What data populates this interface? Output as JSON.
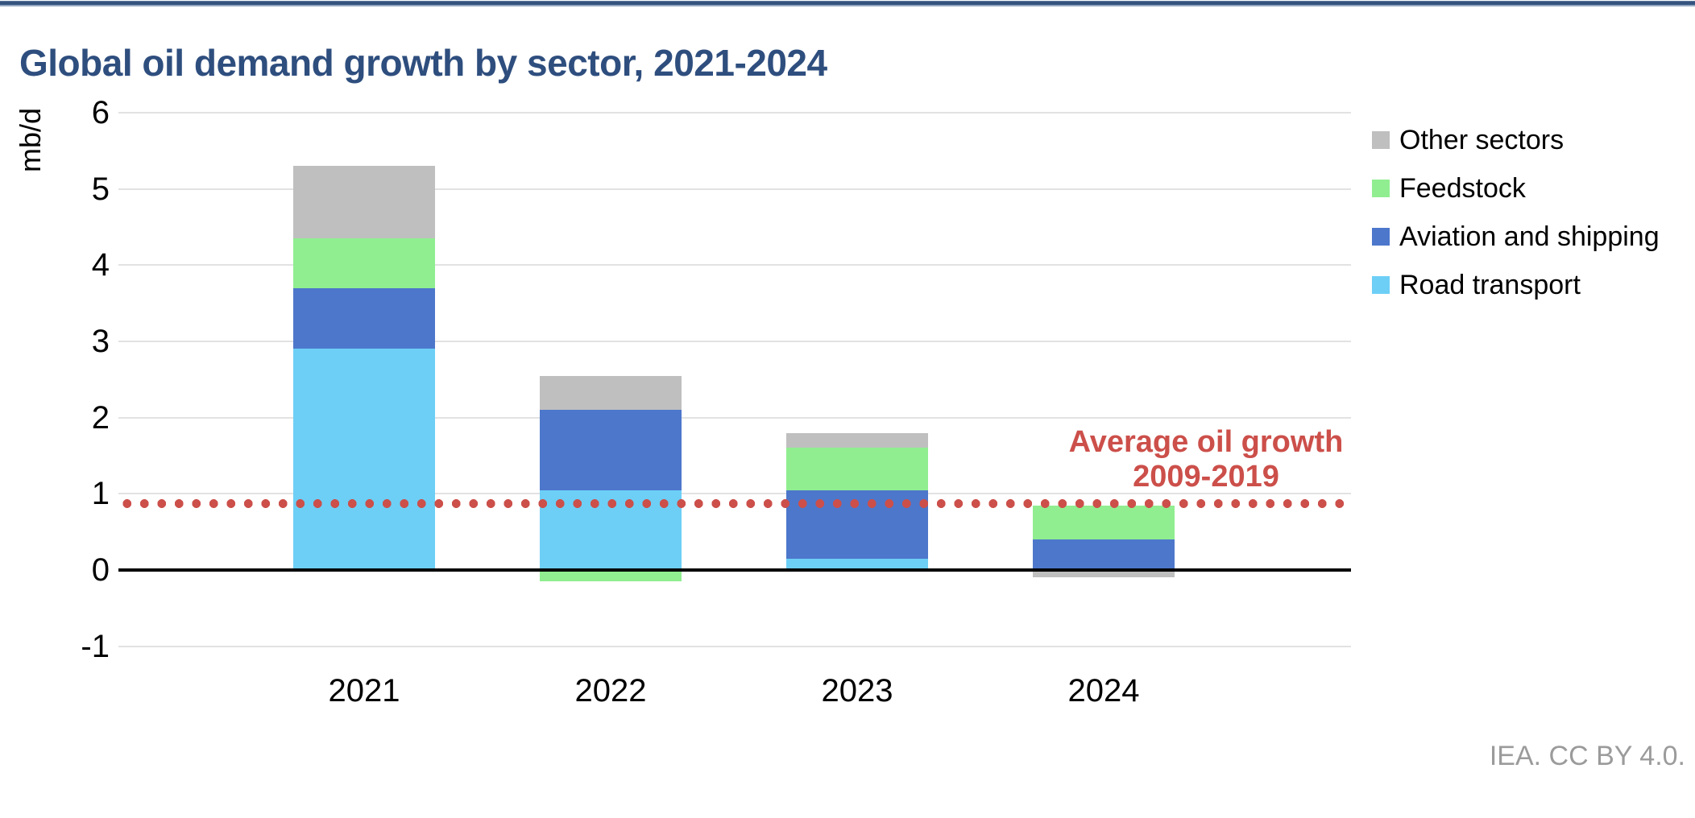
{
  "header": {
    "title": "Global oil demand growth by sector, 2021-2024"
  },
  "footer": {
    "source": "IEA. CC BY 4.0."
  },
  "colors": {
    "title": "#2e4e7e",
    "top_rule": "#35537e",
    "grid": "#e2e2e2",
    "zero_axis": "#000000",
    "reference": "#cc4f4a",
    "source_text": "#9b9b9b",
    "road_transport": "#6dcff6",
    "aviation_and_shipping": "#4d77cb",
    "feedstock": "#90ee90",
    "other_sectors": "#bfbfbf"
  },
  "chart_data": {
    "type": "bar",
    "stacked": true,
    "title": "Global oil demand growth by sector, 2021-2024",
    "xlabel": "",
    "ylabel": "mb/d",
    "categories": [
      "2021",
      "2022",
      "2023",
      "2024"
    ],
    "series": [
      {
        "name": "Road transport",
        "color": "#6dcff6",
        "values": [
          2.9,
          1.05,
          0.15,
          0
        ]
      },
      {
        "name": "Aviation and shipping",
        "color": "#4d77cb",
        "values": [
          0.8,
          1.05,
          0.9,
          0.4
        ]
      },
      {
        "name": "Feedstock",
        "color": "#90ee90",
        "values": [
          0.65,
          -0.15,
          0.55,
          0.45
        ]
      },
      {
        "name": "Other sectors",
        "color": "#bfbfbf",
        "values": [
          0.95,
          0.45,
          0.2,
          -0.1
        ]
      }
    ],
    "totals_positive": [
      5.3,
      2.55,
      1.8,
      0.85
    ],
    "legend_order": [
      "Other sectors",
      "Feedstock",
      "Aviation and shipping",
      "Road transport"
    ],
    "legend_position": "right",
    "y_ticks": [
      6,
      5,
      4,
      3,
      2,
      1,
      0,
      -1
    ],
    "ylim": [
      -1,
      6
    ],
    "grid": true,
    "reference_line": {
      "value": 0.87,
      "label": "Average oil growth\n2009-2019"
    }
  }
}
